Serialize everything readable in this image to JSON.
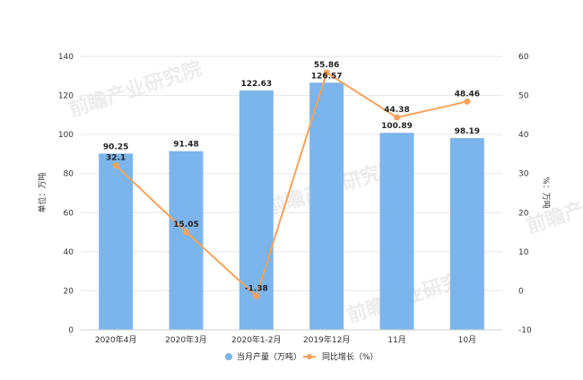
{
  "chart_data": {
    "type": "bar",
    "categories": [
      "2020年4月",
      "2020年3月",
      "2020年1-2月",
      "2019年12月",
      "11月",
      "10月"
    ],
    "series": [
      {
        "name": "当月产量（万吨）",
        "type": "bar",
        "axis": "left",
        "color": "#7cb5ec",
        "values": [
          90.25,
          91.48,
          122.63,
          126.57,
          100.89,
          98.19
        ],
        "labels": [
          "90.25",
          "91.48",
          "122.63",
          "126.57",
          "100.89",
          "98.19"
        ]
      },
      {
        "name": "同比增长（%）",
        "type": "line",
        "axis": "right",
        "color": "#f7a35c",
        "values": [
          32.1,
          15.05,
          -1.38,
          55.86,
          44.38,
          48.46
        ],
        "labels": [
          "32.1",
          "15.05",
          "-1.38",
          "55.86",
          "44.38",
          "48.46"
        ]
      }
    ],
    "ylabel": "单位：万吨",
    "y2label": "%：万吨",
    "ylim": [
      0,
      140
    ],
    "y2lim": [
      -10,
      60
    ],
    "yticks": [
      "0",
      "20",
      "40",
      "60",
      "80",
      "100",
      "120",
      "140"
    ],
    "y2ticks": [
      "-10",
      "0",
      "10",
      "20",
      "30",
      "40",
      "50",
      "60"
    ],
    "grid": true,
    "legend_position": "bottom",
    "watermark": "前瞻产业研究院"
  }
}
